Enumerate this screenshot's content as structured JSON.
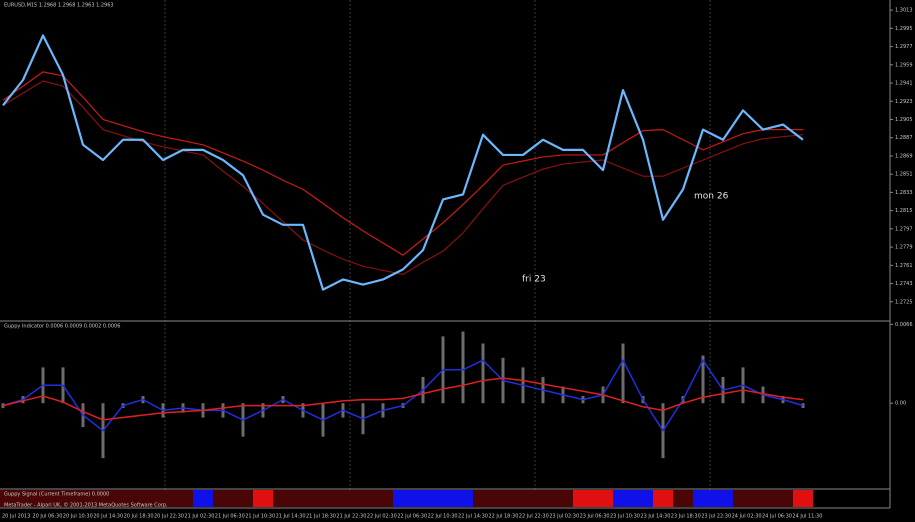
{
  "chart_data": [
    {
      "type": "line",
      "title": "EURUSD,M15 1.2968 1.2968 1.2963 1.2963",
      "annotations": [
        "fri 23",
        "mon 26"
      ],
      "ylim": [
        1.2707,
        1.3023
      ],
      "yticks": [
        1.3013,
        1.2995,
        1.2977,
        1.2959,
        1.2941,
        1.2923,
        1.2905,
        1.2887,
        1.2869,
        1.2851,
        1.2833,
        1.2815,
        1.2797,
        1.2779,
        1.2761,
        1.2743,
        1.2725
      ],
      "series": [
        {
          "color": "#cc1a1a",
          "values": [
            1.2924,
            1.2938,
            1.2952,
            1.2948,
            1.2927,
            1.2905,
            1.2899,
            1.2893,
            1.2888,
            1.2884,
            1.288,
            1.2872,
            1.2864,
            1.2855,
            1.2845,
            1.2836,
            1.2822,
            1.2808,
            1.2795,
            1.2783,
            1.2771,
            1.2787,
            1.2803,
            1.2821,
            1.284,
            1.286,
            1.2864,
            1.2868,
            1.287,
            1.287,
            1.287,
            1.2882,
            1.2894,
            1.2895,
            1.2885,
            1.2875,
            1.2883,
            1.2891,
            1.2895,
            1.2895,
            1.2895
          ]
        },
        {
          "color": "#8a1010",
          "values": [
            1.2919,
            1.2931,
            1.2943,
            1.2938,
            1.2917,
            1.2895,
            1.2889,
            1.2883,
            1.2878,
            1.2874,
            1.287,
            1.2854,
            1.2839,
            1.2822,
            1.2804,
            1.2786,
            1.2776,
            1.2767,
            1.276,
            1.2756,
            1.2752,
            1.2764,
            1.2775,
            1.2793,
            1.2817,
            1.284,
            1.2848,
            1.2856,
            1.2861,
            1.2863,
            1.2865,
            1.2857,
            1.2849,
            1.2849,
            1.2857,
            1.2865,
            1.2873,
            1.2881,
            1.2886,
            1.2888,
            1.289
          ]
        },
        {
          "color": "#6ab8ff",
          "values": [
            1.2919,
            1.2944,
            1.2988,
            1.2949,
            1.288,
            1.2865,
            1.2885,
            1.2885,
            1.2865,
            1.2875,
            1.2875,
            1.2865,
            1.285,
            1.2811,
            1.2801,
            1.2801,
            1.2737,
            1.2747,
            1.2742,
            1.2747,
            1.2757,
            1.2776,
            1.2826,
            1.2831,
            1.289,
            1.287,
            1.287,
            1.2885,
            1.2875,
            1.2875,
            1.2855,
            1.2934,
            1.2885,
            1.2806,
            1.2836,
            1.2895,
            1.2885,
            1.2914,
            1.2895,
            1.29,
            1.2885
          ]
        }
      ]
    },
    {
      "type": "combo",
      "title": "Guppy Indicator 0.0006 0.0009 0.0002 0.0006",
      "ylim": [
        -0.0071,
        0.0068
      ],
      "yticks": [
        0.0066,
        {
          "value": 0,
          "label": "0.00"
        }
      ],
      "series": [
        {
          "kind": "bar",
          "color": "#9a9a9a",
          "values": [
            -0.0004,
            0.0006,
            0.003,
            0.003,
            -0.002,
            -0.0046,
            -0.0004,
            0.0006,
            -0.0012,
            -0.0008,
            -0.0012,
            -0.0012,
            -0.0028,
            -0.0012,
            0.0006,
            -0.0012,
            -0.0028,
            -0.0012,
            -0.0026,
            -0.0012,
            -0.0004,
            0.0022,
            0.0056,
            0.006,
            0.005,
            0.0038,
            0.003,
            0.0022,
            0.0014,
            0.0006,
            0.0014,
            0.005,
            0.0006,
            -0.0046,
            0.0006,
            0.004,
            0.0022,
            0.003,
            0.0014,
            0.0006,
            -0.0004
          ]
        },
        {
          "kind": "line",
          "color": "#2030e0",
          "values": [
            -0.0002,
            0.0003,
            0.0015,
            0.0015,
            -0.001,
            -0.0023,
            -0.0002,
            0.0003,
            -0.0006,
            -0.0004,
            -0.0006,
            -0.0006,
            -0.0014,
            -0.0006,
            0.0003,
            -0.0006,
            -0.0014,
            -0.0006,
            -0.0013,
            -0.0006,
            -0.0002,
            0.0011,
            0.0028,
            0.0028,
            0.0036,
            0.0019,
            0.0015,
            0.0011,
            0.0007,
            0.0003,
            0.0007,
            0.0036,
            0.0003,
            -0.0023,
            0.0003,
            0.0036,
            0.0011,
            0.0015,
            0.0007,
            0.0003,
            -0.0002
          ]
        },
        {
          "kind": "line",
          "color": "#e02020",
          "values": [
            -0.0002,
            0.0002,
            0.0006,
            0.0001,
            -0.0007,
            -0.0014,
            -0.0012,
            -0.001,
            -0.0008,
            -0.0007,
            -0.0006,
            -0.0004,
            -0.0002,
            -0.0002,
            -0.0002,
            -0.0002,
            0.0,
            0.0002,
            0.0003,
            0.0003,
            0.0004,
            0.0008,
            0.0012,
            0.0015,
            0.0019,
            0.0021,
            0.0019,
            0.0016,
            0.0013,
            0.001,
            0.0007,
            0.0002,
            -0.0003,
            -0.0006,
            0.0,
            0.0005,
            0.0008,
            0.0011,
            0.0008,
            0.0005,
            0.0003
          ]
        }
      ]
    },
    {
      "type": "signal",
      "title": "Guppy Signal (Current Timeframe) 0.0000",
      "footer": "MetaTrader - Alpari UK, © 2001-2013 MetaQuotes Software Corp.",
      "up_color": "#1010e8",
      "down_color": "#e01010",
      "neutral_color": "#4a0606",
      "values": [
        0,
        0,
        0,
        0,
        0,
        0,
        0,
        0,
        0,
        0,
        1,
        0,
        0,
        -1,
        0,
        0,
        0,
        0,
        0,
        0,
        1,
        1,
        1,
        1,
        0,
        0,
        0,
        0,
        0,
        -1,
        -1,
        1,
        1,
        -1,
        0,
        1,
        1,
        0,
        0,
        0,
        -1
      ],
      "x_labels": [
        "20 Jul 2013",
        "20 Jul 06:30",
        "20 Jul 10:30",
        "20 Jul 14:30",
        "20 Jul 18:30",
        "20 Jul 22:30",
        "21 Jul 02:30",
        "21 Jul 06:30",
        "21 Jul 10:30",
        "21 Jul 14:30",
        "21 Jul 18:30",
        "21 Jul 22:30",
        "22 Jul 02:30",
        "22 Jul 06:30",
        "22 Jul 10:30",
        "22 Jul 14:30",
        "22 Jul 18:30",
        "22 Jul 22:30",
        "23 Jul 02:30",
        "23 Jul 06:30",
        "23 Jul 10:30",
        "23 Jul 14:30",
        "23 Jul 18:30",
        "23 Jul 22:30",
        "24 Jul 02:30",
        "24 Jul 06:30",
        "24 Jul 11:30"
      ]
    }
  ]
}
